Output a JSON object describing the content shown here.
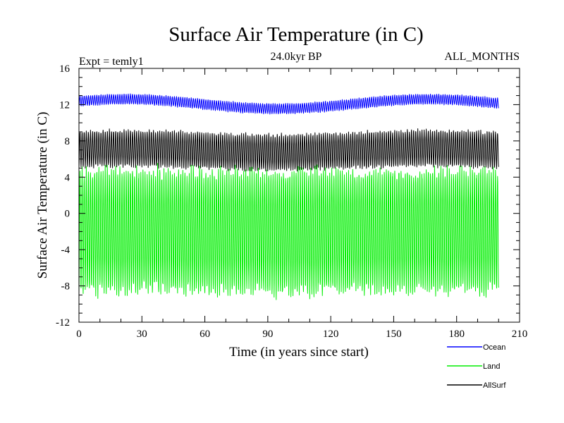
{
  "chart_data": {
    "type": "line",
    "title": "Surface Air Temperature (in C)",
    "subtitle": "24.0kyr BP",
    "left_label": "Expt = temly1",
    "right_label": "ALL_MONTHS",
    "xlabel": "Time (in years since start)",
    "ylabel": "Surface Air Temperature (in C)",
    "xlim": [
      0,
      210
    ],
    "ylim": [
      -12,
      16
    ],
    "x_ticks": [
      "0",
      "30",
      "60",
      "90",
      "120",
      "150",
      "180",
      "210"
    ],
    "y_ticks": [
      "16",
      "12",
      "8",
      "4",
      "0",
      "-4",
      "-8",
      "-12"
    ],
    "x_tick_values": [
      0,
      30,
      60,
      90,
      120,
      150,
      180,
      210
    ],
    "y_tick_values": [
      16,
      12,
      8,
      4,
      0,
      -4,
      -8,
      -12
    ],
    "series": [
      {
        "name": "Ocean",
        "color": "#0000ff",
        "x_start": 0,
        "x_end": 200,
        "years": 200,
        "mean_min": 11.55,
        "mean_max": 12.6,
        "amplitude": 0.55,
        "seasonal_min": 11.0,
        "seasonal_max": 12.7
      },
      {
        "name": "Land",
        "color": "#00ee00",
        "x_start": 0,
        "x_end": 200,
        "years": 200,
        "mean_min": -2.1,
        "mean_max": -1.9,
        "amplitude": 6.6,
        "seasonal_min": -9.0,
        "seasonal_max": 4.5
      },
      {
        "name": "AllSurf",
        "color": "#000000",
        "x_start": 0,
        "x_end": 200,
        "years": 200,
        "mean_min": 6.75,
        "mean_max": 7.2,
        "amplitude": 1.95,
        "seasonal_min": 4.8,
        "seasonal_max": 9.1
      }
    ],
    "legend": [
      {
        "label": "Ocean",
        "color": "#0000ff"
      },
      {
        "label": "Land",
        "color": "#00ee00"
      },
      {
        "label": "AllSurf",
        "color": "#000000"
      }
    ]
  }
}
